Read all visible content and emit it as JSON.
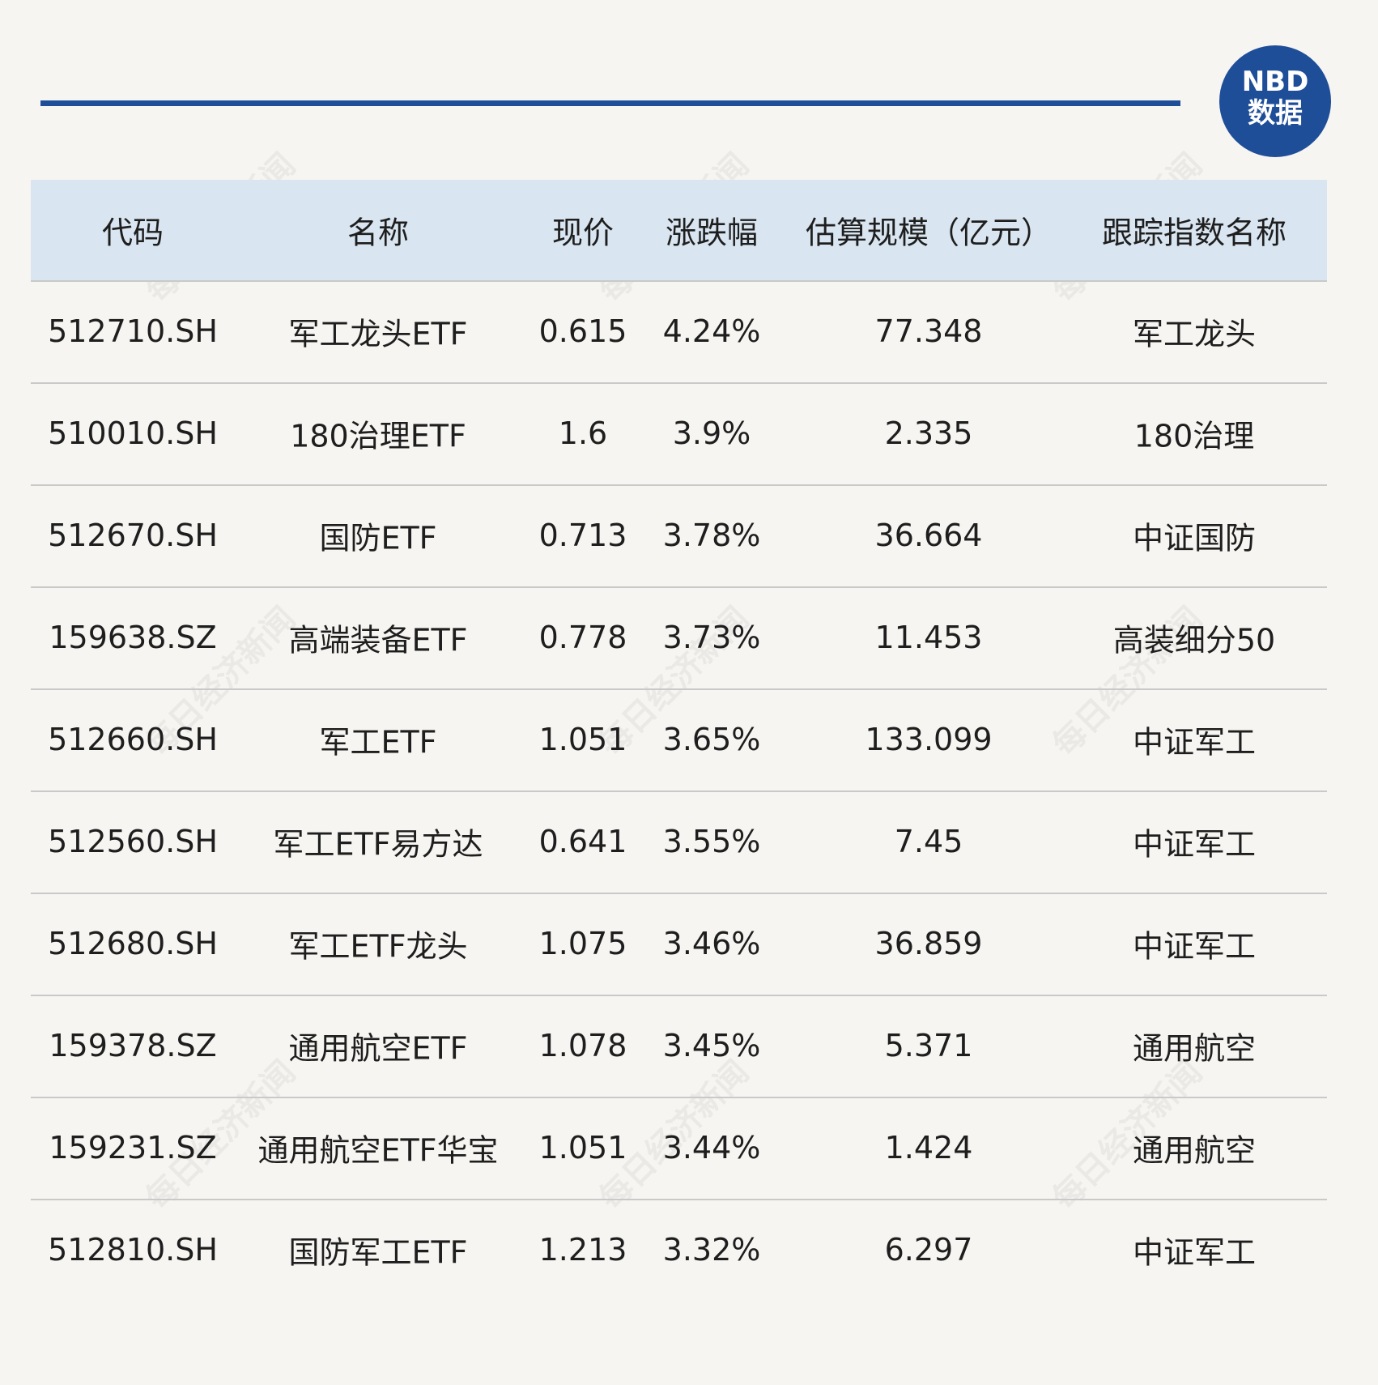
{
  "logo": {
    "line1": "NBD",
    "line2": "数据"
  },
  "watermark": "每日经济新闻",
  "table": {
    "columns": [
      "代码",
      "名称",
      "现价",
      "涨跌幅",
      "估算规模（亿元）",
      "跟踪指数名称"
    ],
    "rows": [
      [
        "512710.SH",
        "军工龙头ETF",
        "0.615",
        "4.24%",
        "77.348",
        "军工龙头"
      ],
      [
        "510010.SH",
        "180治理ETF",
        "1.6",
        "3.9%",
        "2.335",
        "180治理"
      ],
      [
        "512670.SH",
        "国防ETF",
        "0.713",
        "3.78%",
        "36.664",
        "中证国防"
      ],
      [
        "159638.SZ",
        "高端装备ETF",
        "0.778",
        "3.73%",
        "11.453",
        "高装细分50"
      ],
      [
        "512660.SH",
        "军工ETF",
        "1.051",
        "3.65%",
        "133.099",
        "中证军工"
      ],
      [
        "512560.SH",
        "军工ETF易方达",
        "0.641",
        "3.55%",
        "7.45",
        "中证军工"
      ],
      [
        "512680.SH",
        "军工ETF龙头",
        "1.075",
        "3.46%",
        "36.859",
        "中证军工"
      ],
      [
        "159378.SZ",
        "通用航空ETF",
        "1.078",
        "3.45%",
        "5.371",
        "通用航空"
      ],
      [
        "159231.SZ",
        "通用航空ETF华宝",
        "1.051",
        "3.44%",
        "1.424",
        "通用航空"
      ],
      [
        "512810.SH",
        "国防军工ETF",
        "1.213",
        "3.32%",
        "6.297",
        "中证军工"
      ]
    ]
  }
}
